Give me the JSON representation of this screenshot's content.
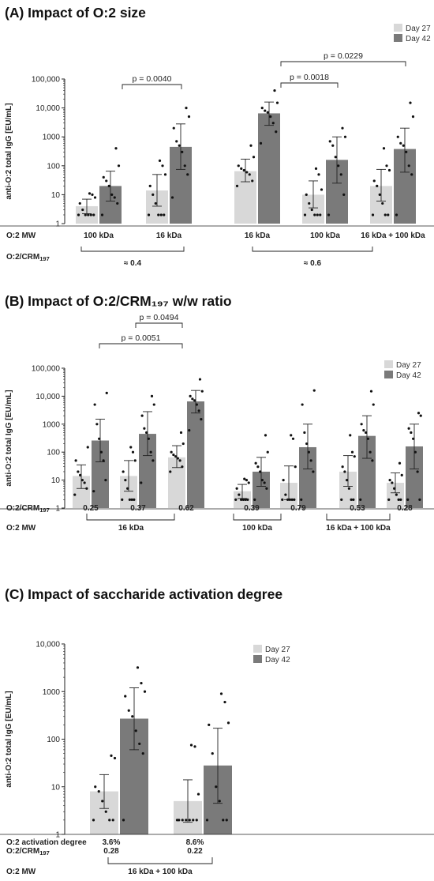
{
  "panels": [
    {
      "title": "(A) Impact of O:2 size",
      "ylabel": "anti-O:2 total IgG [EU/mL]",
      "legend": [
        "Day 27",
        "Day 42"
      ],
      "row_labels": [
        "O:2 MW",
        "O:2/CRM₁₉₇"
      ],
      "group_labels": [
        "100 kDa",
        "16 kDa",
        "16 kDa",
        "100 kDa",
        "16 kDa + 100 kDa"
      ],
      "bracket_labels": [
        "≈ 0.4",
        "≈ 0.6"
      ],
      "pvalues": [
        "p = 0.0040",
        "p = 0.0018",
        "p = 0.0229"
      ]
    },
    {
      "title": "(B) Impact of O:2/CRM₁₉₇ w/w ratio",
      "ylabel": "anti-O:2 total IgG [EU/mL]",
      "legend": [
        "Day 27",
        "Day 42"
      ],
      "row_labels": [
        "O:2/CRM₁₉₇",
        "O:2 MW"
      ],
      "group_labels": [
        "0.25",
        "0.37",
        "0.62",
        "0.39",
        "0.79",
        "0.53",
        "0.28"
      ],
      "bracket_labels": [
        "16 kDa",
        "100 kDa",
        "16 kDa + 100 kDa"
      ],
      "pvalues": [
        "p = 0.0494",
        "p = 0.0051"
      ]
    },
    {
      "title": "(C) Impact of saccharide activation degree",
      "ylabel": "anti-O:2 total IgG [EU/mL]",
      "legend": [
        "Day 27",
        "Day 42"
      ],
      "row_labels": [
        "O:2 activation degree",
        "O:2/CRM₁₉₇",
        "O:2 MW"
      ],
      "group_row1": [
        "3.6%",
        "8.6%"
      ],
      "group_row2": [
        "0.28",
        "0.22"
      ],
      "bracket_labels": [
        "16 kDa + 100 kDa"
      ],
      "pvalues": []
    }
  ],
  "chart_data": [
    {
      "type": "bar",
      "title": "(A) Impact of O:2 size",
      "ylabel": "anti-O:2 total IgG [EU/mL]",
      "yscale": "log",
      "ylim": [
        1,
        100000
      ],
      "yticks": [
        "1",
        "10",
        "100",
        "1000",
        "10,000",
        "100,000"
      ],
      "categories": [
        "100 kDa",
        "16 kDa",
        "16 kDa",
        "100 kDa",
        "16 kDa + 100 kDa"
      ],
      "series": [
        {
          "name": "Day 27",
          "color": "#d8d8d8",
          "values": [
            4,
            14,
            65,
            10,
            20
          ],
          "err_low": [
            2.2,
            4,
            28,
            3.5,
            6
          ],
          "err_high": [
            7,
            50,
            170,
            30,
            75
          ]
        },
        {
          "name": "Day 42",
          "color": "#7a7a7a",
          "values": [
            20,
            450,
            6500,
            160,
            380
          ],
          "err_low": [
            6,
            75,
            2500,
            25,
            60
          ],
          "err_high": [
            65,
            2800,
            16000,
            1000,
            2000
          ]
        }
      ],
      "points": [
        [
          [
            2,
            2,
            2,
            2,
            2,
            3,
            5,
            8,
            10,
            11
          ],
          [
            2,
            5,
            8,
            10,
            20,
            30,
            40,
            100,
            400
          ]
        ],
        [
          [
            2,
            2,
            2,
            2,
            5,
            10,
            20,
            50,
            100,
            150
          ],
          [
            8,
            50,
            100,
            300,
            500,
            700,
            2000,
            5000,
            10000
          ]
        ],
        [
          [
            20,
            30,
            50,
            60,
            70,
            80,
            100,
            200,
            500
          ],
          [
            600,
            1500,
            3000,
            5000,
            7000,
            8000,
            10000,
            15000,
            40000
          ]
        ],
        [
          [
            2,
            2,
            2,
            2,
            3,
            5,
            10,
            15,
            50,
            80
          ],
          [
            2,
            10,
            50,
            100,
            200,
            500,
            700,
            1000,
            2000
          ]
        ],
        [
          [
            2,
            2,
            2,
            5,
            10,
            20,
            30,
            70,
            100,
            400
          ],
          [
            2,
            50,
            100,
            300,
            500,
            600,
            1000,
            5000,
            15000
          ]
        ]
      ],
      "comparisons": [
        {
          "label": "p = 0.0040",
          "from": "100 kDa Day 42",
          "to": "16 kDa Day 42"
        },
        {
          "label": "p = 0.0018",
          "from": "16 kDa Day 42",
          "to": "100 kDa Day 42"
        },
        {
          "label": "p = 0.0229",
          "from": "16 kDa Day 42",
          "to": "16 kDa + 100 kDa Day 42"
        }
      ]
    },
    {
      "type": "bar",
      "title": "(B) Impact of O:2/CRM₁₉₇ w/w ratio",
      "ylabel": "anti-O:2 total IgG [EU/mL]",
      "yscale": "log",
      "ylim": [
        1,
        100000
      ],
      "yticks": [
        "1",
        "10",
        "100",
        "1000",
        "10,000",
        "100,000"
      ],
      "categories": [
        "0.25",
        "0.37",
        "0.62",
        "0.39",
        "0.79",
        "0.53",
        "0.28"
      ],
      "series": [
        {
          "name": "Day 27",
          "color": "#d8d8d8",
          "values": [
            14,
            14,
            65,
            4,
            8,
            20,
            8
          ],
          "err_low": [
            5,
            4,
            28,
            2.2,
            2,
            6,
            3.5
          ],
          "err_high": [
            35,
            50,
            170,
            7,
            32,
            75,
            18
          ]
        },
        {
          "name": "Day 42",
          "color": "#7a7a7a",
          "values": [
            260,
            450,
            6500,
            20,
            150,
            380,
            160
          ],
          "err_low": [
            45,
            75,
            2500,
            6,
            25,
            60,
            25
          ],
          "err_high": [
            1500,
            2800,
            16000,
            65,
            1000,
            2000,
            1000
          ]
        }
      ],
      "points": [
        [
          [
            3,
            5,
            8,
            10,
            15,
            20,
            50,
            150
          ],
          [
            4,
            10,
            50,
            100,
            300,
            1000,
            5000,
            13000
          ]
        ],
        [
          [
            2,
            2,
            2,
            2,
            5,
            10,
            20,
            50,
            100,
            150
          ],
          [
            8,
            50,
            100,
            300,
            500,
            700,
            2000,
            5000,
            10000
          ]
        ],
        [
          [
            20,
            30,
            50,
            60,
            70,
            80,
            100,
            200,
            500
          ],
          [
            600,
            1500,
            3000,
            5000,
            7000,
            8000,
            10000,
            15000,
            40000
          ]
        ],
        [
          [
            2,
            2,
            2,
            2,
            2,
            3,
            5,
            8,
            10,
            11
          ],
          [
            2,
            5,
            8,
            10,
            20,
            30,
            40,
            100,
            400
          ]
        ],
        [
          [
            2,
            2,
            2,
            2,
            2,
            3,
            10,
            30,
            300,
            400
          ],
          [
            2,
            20,
            50,
            100,
            200,
            500,
            5000,
            16000
          ]
        ],
        [
          [
            2,
            2,
            2,
            5,
            10,
            20,
            30,
            70,
            100,
            400
          ],
          [
            2,
            50,
            100,
            300,
            500,
            600,
            1000,
            5000,
            15000
          ]
        ],
        [
          [
            2,
            2,
            2,
            3,
            5,
            8,
            10,
            15,
            40
          ],
          [
            2,
            2,
            20,
            100,
            300,
            500,
            700,
            2000,
            2500
          ]
        ]
      ],
      "comparisons": [
        {
          "label": "p = 0.0494",
          "from": "0.37 Day 42",
          "to": "0.62 Day 42"
        },
        {
          "label": "p = 0.0051",
          "from": "0.25 Day 42",
          "to": "0.62 Day 42"
        }
      ]
    },
    {
      "type": "bar",
      "title": "(C) Impact of saccharide activation degree",
      "ylabel": "anti-O:2 total IgG [EU/mL]",
      "yscale": "log",
      "ylim": [
        1,
        10000
      ],
      "yticks": [
        "1",
        "10",
        "100",
        "1000",
        "10,000"
      ],
      "categories": [
        "3.6%",
        "8.6%"
      ],
      "series": [
        {
          "name": "Day 27",
          "color": "#d8d8d8",
          "values": [
            8,
            5
          ],
          "err_low": [
            3.5,
            1.8
          ],
          "err_high": [
            18,
            14
          ]
        },
        {
          "name": "Day 42",
          "color": "#7a7a7a",
          "values": [
            270,
            28
          ],
          "err_low": [
            60,
            4.5
          ],
          "err_high": [
            1200,
            170
          ]
        }
      ],
      "points": [
        [
          [
            2,
            2,
            2,
            3,
            5,
            8,
            10,
            40,
            45
          ],
          [
            2,
            50,
            80,
            150,
            300,
            400,
            800,
            1000,
            1500,
            3200
          ]
        ],
        [
          [
            2,
            2,
            2,
            2,
            2,
            2,
            2,
            7,
            70,
            75
          ],
          [
            2,
            2,
            2,
            5,
            10,
            50,
            200,
            220,
            600,
            900
          ]
        ]
      ],
      "comparisons": []
    }
  ]
}
